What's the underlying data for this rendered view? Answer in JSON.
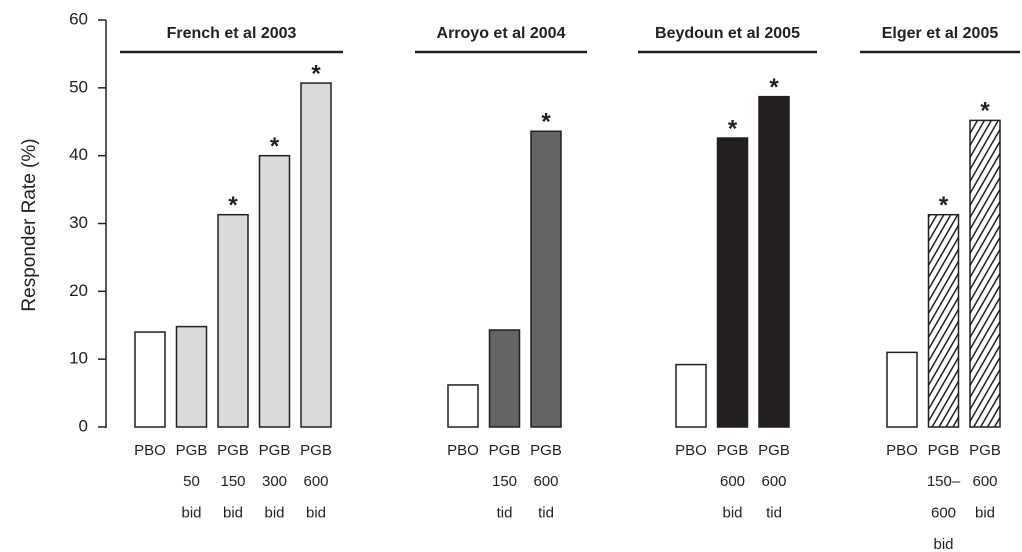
{
  "chart_data": {
    "type": "bar",
    "ylabel": "Responder Rate (%)",
    "ylim": [
      0,
      60
    ],
    "yticks": [
      0,
      10,
      20,
      30,
      40,
      50,
      60
    ],
    "groups": [
      {
        "title": "French et al 2003",
        "bars": [
          {
            "label": "PBO",
            "dose": [],
            "value": 14,
            "color": "#ffffff"
          },
          {
            "label": "PGB",
            "dose": [
              "50",
              "bid"
            ],
            "value": 14.8,
            "color": "#d9dadc"
          },
          {
            "label": "PGB",
            "dose": [
              "150",
              "bid"
            ],
            "value": 31.3,
            "color": "#d9dadc",
            "star": "*"
          },
          {
            "label": "PGB",
            "dose": [
              "300",
              "bid"
            ],
            "value": 40,
            "color": "#d9dadc",
            "star": "*"
          },
          {
            "label": "PGB",
            "dose": [
              "600",
              "bid"
            ],
            "value": 50.7,
            "color": "#d9dadc",
            "star": "*"
          }
        ]
      },
      {
        "title": "Arroyo et al 2004",
        "bars": [
          {
            "label": "PBO",
            "dose": [],
            "value": 6.2,
            "color": "#ffffff"
          },
          {
            "label": "PGB",
            "dose": [
              "150",
              "tid"
            ],
            "value": 14.3,
            "color": "#636466"
          },
          {
            "label": "PGB",
            "dose": [
              "600",
              "tid"
            ],
            "value": 43.6,
            "color": "#636466",
            "star": "*"
          }
        ]
      },
      {
        "title": "Beydoun et al 2005",
        "bars": [
          {
            "label": "PBO",
            "dose": [],
            "value": 9.2,
            "color": "#ffffff"
          },
          {
            "label": "PGB",
            "dose": [
              "600",
              "bid"
            ],
            "value": 42.6,
            "color": "#231f20",
            "star": "*"
          },
          {
            "label": "PGB",
            "dose": [
              "600",
              "tid"
            ],
            "value": 48.7,
            "color": "#231f20",
            "star": "*"
          }
        ]
      },
      {
        "title": "Elger et al 2005",
        "bars": [
          {
            "label": "PBO",
            "dose": [],
            "value": 11,
            "color": "#ffffff"
          },
          {
            "label": "PGB",
            "dose": [
              "150–",
              "600",
              "bid"
            ],
            "value": 31.3,
            "color": "#231f20",
            "pattern": "hatch",
            "star": "*"
          },
          {
            "label": "PGB",
            "dose": [
              "600",
              "bid"
            ],
            "value": 45.2,
            "color": "#231f20",
            "pattern": "hatch",
            "star": "*"
          }
        ]
      }
    ]
  }
}
